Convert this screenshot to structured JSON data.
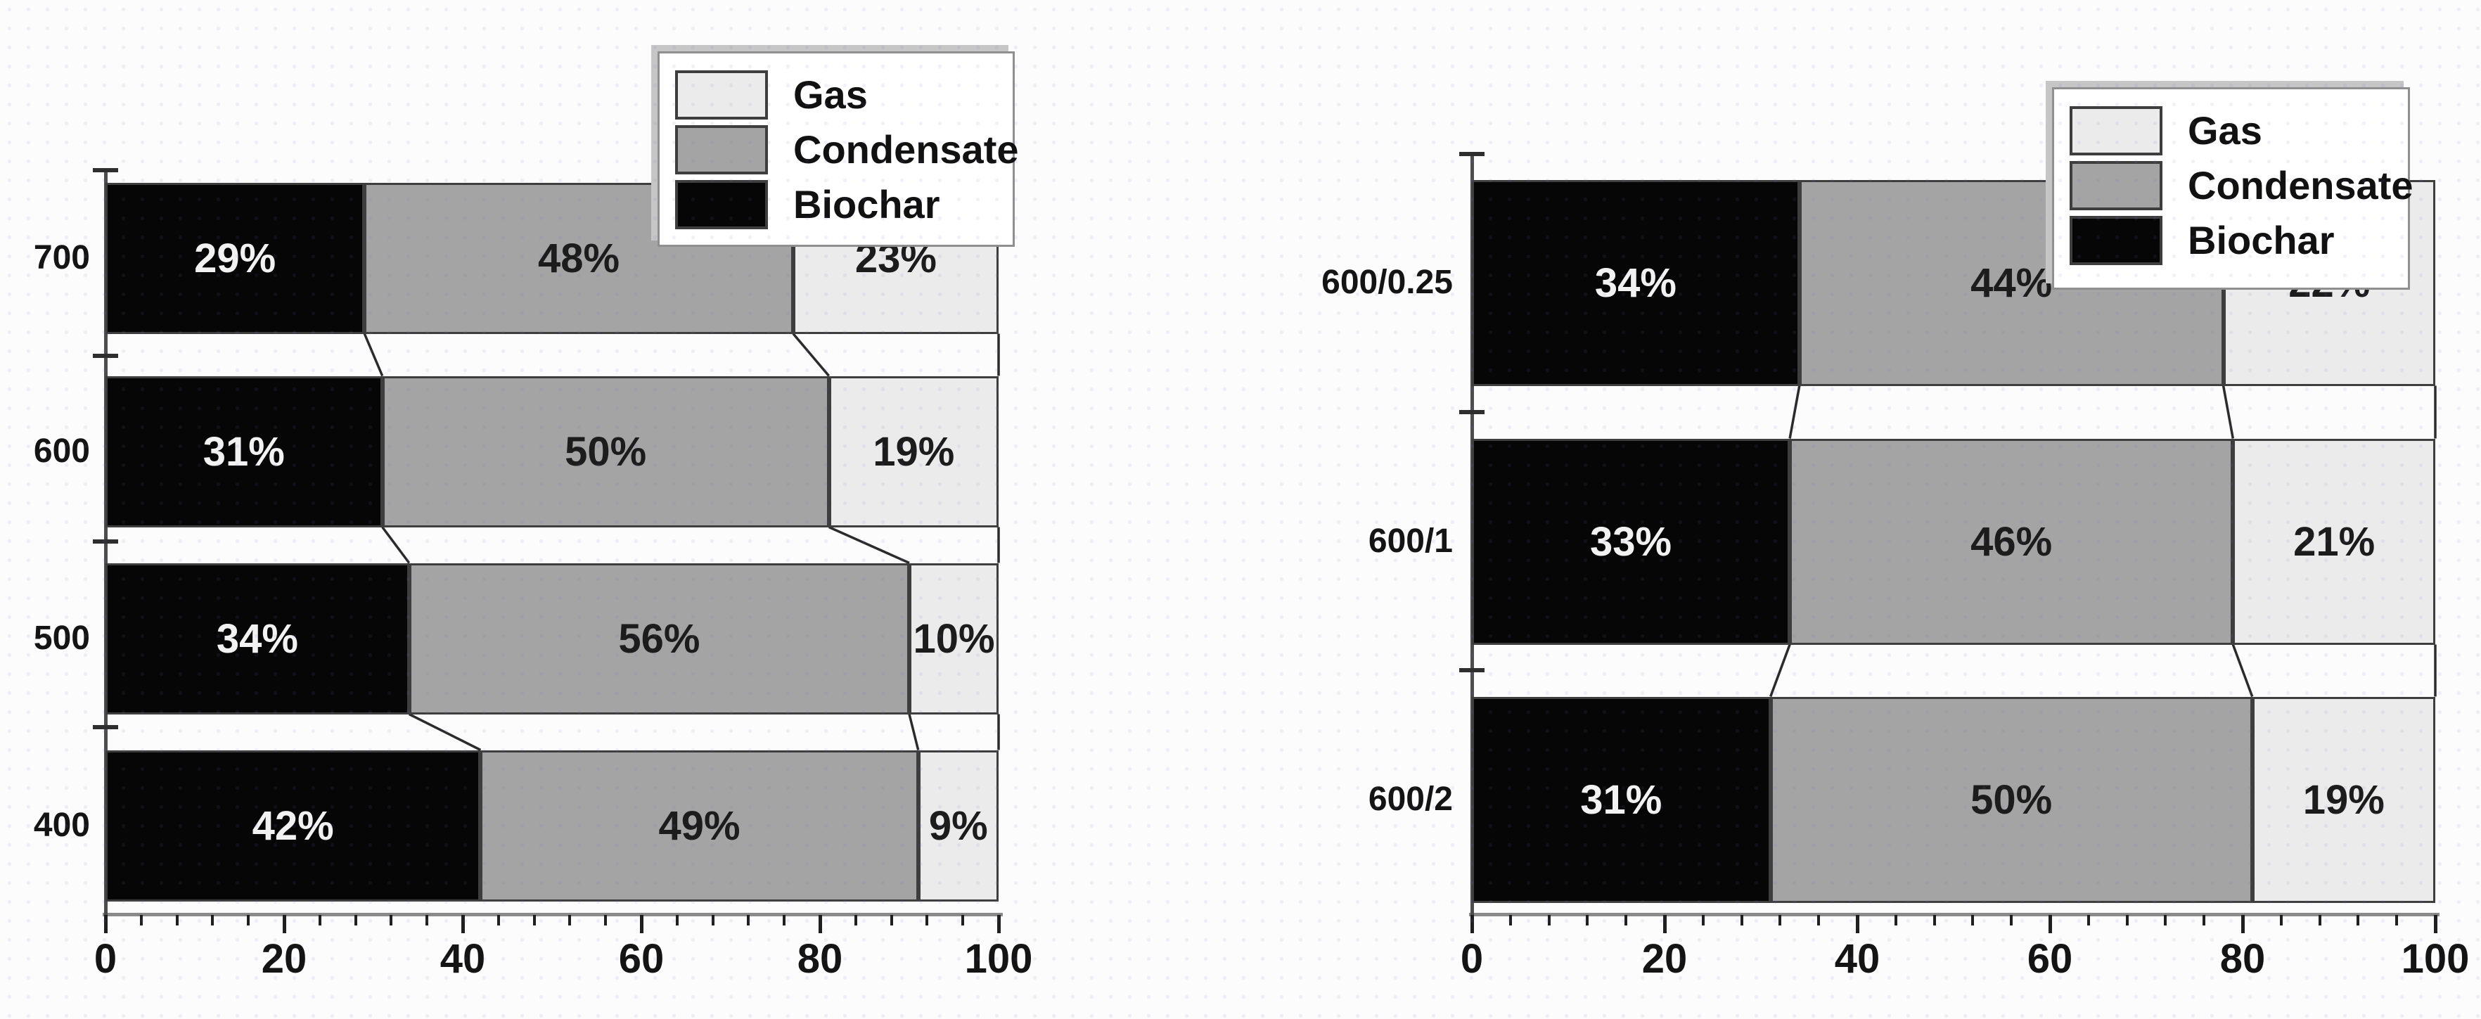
{
  "page": {
    "background_color": "#fcfcfc"
  },
  "legend": {
    "items": [
      {
        "label": "Gas",
        "color": "#ebebeb"
      },
      {
        "label": "Condensate",
        "color": "#a4a4a4"
      },
      {
        "label": "Biochar",
        "color": "#060606"
      }
    ]
  },
  "chart_data": [
    {
      "type": "bar",
      "orientation": "horizontal",
      "stacked": true,
      "title": "",
      "xlabel": "",
      "ylabel": "",
      "categories": [
        "700",
        "600",
        "500",
        "400"
      ],
      "series": [
        {
          "name": "Biochar",
          "color": "#060606",
          "value_label_color": "#f2f2f2",
          "values": [
            29,
            31,
            34,
            42
          ]
        },
        {
          "name": "Condensate",
          "color": "#a4a4a4",
          "value_label_color": "#1c1c1c",
          "values": [
            48,
            50,
            56,
            49
          ]
        },
        {
          "name": "Gas",
          "color": "#ebebeb",
          "value_label_color": "#1c1c1c",
          "values": [
            23,
            19,
            10,
            9
          ]
        }
      ],
      "value_suffix": "%",
      "xlim": [
        0,
        100
      ],
      "x_ticks": [
        0,
        20,
        40,
        60,
        80,
        100
      ],
      "minor_ticks_per_major_interval": 4,
      "grid": false,
      "legend_position": "top-center",
      "legend_order": [
        "Gas",
        "Condensate",
        "Biochar"
      ]
    },
    {
      "type": "bar",
      "orientation": "horizontal",
      "stacked": true,
      "title": "",
      "xlabel": "",
      "ylabel": "",
      "categories": [
        "600/0.25",
        "600/1",
        "600/2"
      ],
      "series": [
        {
          "name": "Biochar",
          "color": "#060606",
          "value_label_color": "#f2f2f2",
          "values": [
            34,
            33,
            31
          ]
        },
        {
          "name": "Condensate",
          "color": "#a4a4a4",
          "value_label_color": "#1c1c1c",
          "values": [
            44,
            46,
            50
          ]
        },
        {
          "name": "Gas",
          "color": "#ebebeb",
          "value_label_color": "#1c1c1c",
          "values": [
            22,
            21,
            19
          ]
        }
      ],
      "value_suffix": "%",
      "xlim": [
        0,
        100
      ],
      "x_ticks": [
        0,
        20,
        40,
        60,
        80,
        100
      ],
      "minor_ticks_per_major_interval": 4,
      "grid": false,
      "legend_position": "top-right",
      "legend_order": [
        "Gas",
        "Condensate",
        "Biochar"
      ]
    }
  ]
}
